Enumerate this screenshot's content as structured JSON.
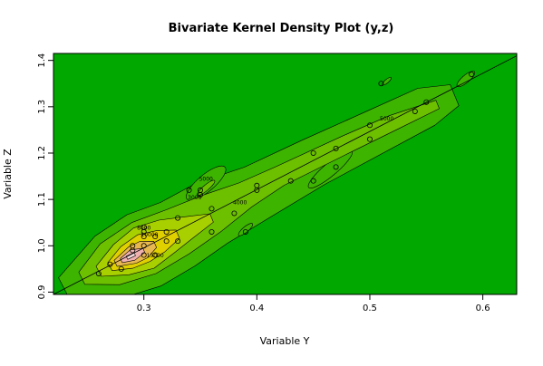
{
  "chart_data": {
    "type": "contour",
    "title": "Bivariate Kernel Density Plot (y,z)",
    "xlabel": "Variable Y",
    "ylabel": "Variable Z",
    "xlim": [
      0.22,
      0.63
    ],
    "ylim": [
      0.895,
      1.415
    ],
    "xticks": [
      0.3,
      0.4,
      0.5,
      0.6
    ],
    "yticks": [
      0.9,
      1.0,
      1.1,
      1.2,
      1.3,
      1.4
    ],
    "xtick_labels": [
      "0.3",
      "0.4",
      "0.5",
      "0.6"
    ],
    "ytick_labels": [
      "0.9",
      "1.0",
      "1.1",
      "1.2",
      "1.3",
      "1.4"
    ],
    "colors": {
      "background": "#00a800",
      "level1": "#3cb400",
      "level2": "#6cc000",
      "level3": "#a8d000",
      "level4": "#e0d000",
      "level5": "#e8b850",
      "level6": "#f0b0b0",
      "level7": "#f6dcdc",
      "contour_line": "#000000",
      "diagonal_line": "#000000"
    },
    "reference_line": {
      "x": [
        0.22,
        0.63
      ],
      "y": [
        0.895,
        1.41
      ]
    },
    "points": [
      {
        "x": 0.26,
        "y": 0.94
      },
      {
        "x": 0.27,
        "y": 0.96
      },
      {
        "x": 0.28,
        "y": 0.95
      },
      {
        "x": 0.29,
        "y": 1.0
      },
      {
        "x": 0.29,
        "y": 0.99
      },
      {
        "x": 0.3,
        "y": 1.02
      },
      {
        "x": 0.3,
        "y": 1.0
      },
      {
        "x": 0.3,
        "y": 1.03
      },
      {
        "x": 0.3,
        "y": 1.04
      },
      {
        "x": 0.3,
        "y": 0.98
      },
      {
        "x": 0.31,
        "y": 1.02
      },
      {
        "x": 0.31,
        "y": 0.98
      },
      {
        "x": 0.32,
        "y": 1.03
      },
      {
        "x": 0.32,
        "y": 1.01
      },
      {
        "x": 0.33,
        "y": 1.01
      },
      {
        "x": 0.33,
        "y": 1.06
      },
      {
        "x": 0.34,
        "y": 1.12
      },
      {
        "x": 0.35,
        "y": 1.12
      },
      {
        "x": 0.35,
        "y": 1.11
      },
      {
        "x": 0.36,
        "y": 1.08
      },
      {
        "x": 0.36,
        "y": 1.03
      },
      {
        "x": 0.38,
        "y": 1.07
      },
      {
        "x": 0.39,
        "y": 1.03
      },
      {
        "x": 0.4,
        "y": 1.13
      },
      {
        "x": 0.4,
        "y": 1.12
      },
      {
        "x": 0.43,
        "y": 1.14
      },
      {
        "x": 0.45,
        "y": 1.14
      },
      {
        "x": 0.45,
        "y": 1.2
      },
      {
        "x": 0.47,
        "y": 1.21
      },
      {
        "x": 0.47,
        "y": 1.17
      },
      {
        "x": 0.5,
        "y": 1.23
      },
      {
        "x": 0.5,
        "y": 1.26
      },
      {
        "x": 0.51,
        "y": 1.35
      },
      {
        "x": 0.54,
        "y": 1.29
      },
      {
        "x": 0.55,
        "y": 1.31
      },
      {
        "x": 0.59,
        "y": 1.37
      }
    ],
    "contour_labels": [
      {
        "text": "5000",
        "x": 0.515,
        "y": 1.27
      },
      {
        "text": "3000",
        "x": 0.345,
        "y": 1.1
      },
      {
        "text": "5000",
        "x": 0.355,
        "y": 1.14
      },
      {
        "text": "4000",
        "x": 0.385,
        "y": 1.09
      },
      {
        "text": "8000",
        "x": 0.3,
        "y": 1.035
      },
      {
        "text": "15000",
        "x": 0.31,
        "y": 0.975
      },
      {
        "text": "10000",
        "x": 0.305,
        "y": 1.02
      }
    ],
    "density_bands": [
      {
        "level": 1,
        "spine": [
          [
            0.23,
            0.905
          ],
          [
            0.27,
            0.955
          ],
          [
            0.3,
            0.99
          ],
          [
            0.33,
            1.025
          ],
          [
            0.36,
            1.07
          ],
          [
            0.4,
            1.115
          ],
          [
            0.45,
            1.18
          ],
          [
            0.5,
            1.24
          ],
          [
            0.55,
            1.3
          ],
          [
            0.575,
            1.325
          ]
        ],
        "width": [
          0.012,
          0.03,
          0.035,
          0.032,
          0.03,
          0.025,
          0.022,
          0.02,
          0.018,
          0.01
        ]
      },
      {
        "level": 2,
        "spine": [
          [
            0.245,
            0.93
          ],
          [
            0.27,
            0.96
          ],
          [
            0.3,
            0.995
          ],
          [
            0.33,
            1.03
          ],
          [
            0.36,
            1.07
          ],
          [
            0.39,
            1.11
          ],
          [
            0.42,
            1.15
          ],
          [
            0.48,
            1.22
          ],
          [
            0.52,
            1.265
          ],
          [
            0.56,
            1.305
          ]
        ],
        "width": [
          0.006,
          0.02,
          0.025,
          0.022,
          0.018,
          0.012,
          0.009,
          0.008,
          0.007,
          0.004
        ]
      },
      {
        "level": 3,
        "spine": [
          [
            0.26,
            0.945
          ],
          [
            0.28,
            0.97
          ],
          [
            0.3,
            0.995
          ],
          [
            0.32,
            1.02
          ],
          [
            0.34,
            1.04
          ],
          [
            0.36,
            1.06
          ]
        ],
        "width": [
          0.005,
          0.015,
          0.02,
          0.016,
          0.01,
          0.004
        ]
      },
      {
        "level": 4,
        "spine": [
          [
            0.27,
            0.955
          ],
          [
            0.285,
            0.975
          ],
          [
            0.3,
            0.995
          ],
          [
            0.315,
            1.01
          ],
          [
            0.33,
            1.025
          ]
        ],
        "width": [
          0.004,
          0.011,
          0.013,
          0.01,
          0.004
        ]
      },
      {
        "level": 5,
        "spine": [
          [
            0.275,
            0.962
          ],
          [
            0.29,
            0.98
          ],
          [
            0.3,
            0.992
          ],
          [
            0.31,
            1.003
          ]
        ],
        "width": [
          0.003,
          0.008,
          0.008,
          0.003
        ]
      },
      {
        "level": 6,
        "spine": [
          [
            0.28,
            0.968
          ],
          [
            0.29,
            0.98
          ],
          [
            0.3,
            0.99
          ]
        ],
        "width": [
          0.002,
          0.005,
          0.002
        ]
      },
      {
        "level": 7,
        "spine": [
          [
            0.285,
            0.974
          ],
          [
            0.292,
            0.982
          ]
        ],
        "width": [
          0.0015,
          0.0015
        ]
      }
    ],
    "side_blobs": [
      {
        "level": 1,
        "cx": 0.355,
        "cy": 1.135,
        "rx": 0.022,
        "ry": 0.018
      },
      {
        "level": 1,
        "cx": 0.37,
        "cy": 1.065,
        "rx": 0.022,
        "ry": 0.02
      },
      {
        "level": 1,
        "cx": 0.465,
        "cy": 1.165,
        "rx": 0.025,
        "ry": 0.014
      },
      {
        "level": 2,
        "cx": 0.355,
        "cy": 1.125,
        "rx": 0.01,
        "ry": 0.006
      },
      {
        "level": 1,
        "cx": 0.515,
        "cy": 1.355,
        "rx": 0.005,
        "ry": 0.004
      },
      {
        "level": 1,
        "cx": 0.585,
        "cy": 1.36,
        "rx": 0.01,
        "ry": 0.008
      },
      {
        "level": 1,
        "cx": 0.39,
        "cy": 1.035,
        "rx": 0.008,
        "ry": 0.006
      }
    ]
  }
}
